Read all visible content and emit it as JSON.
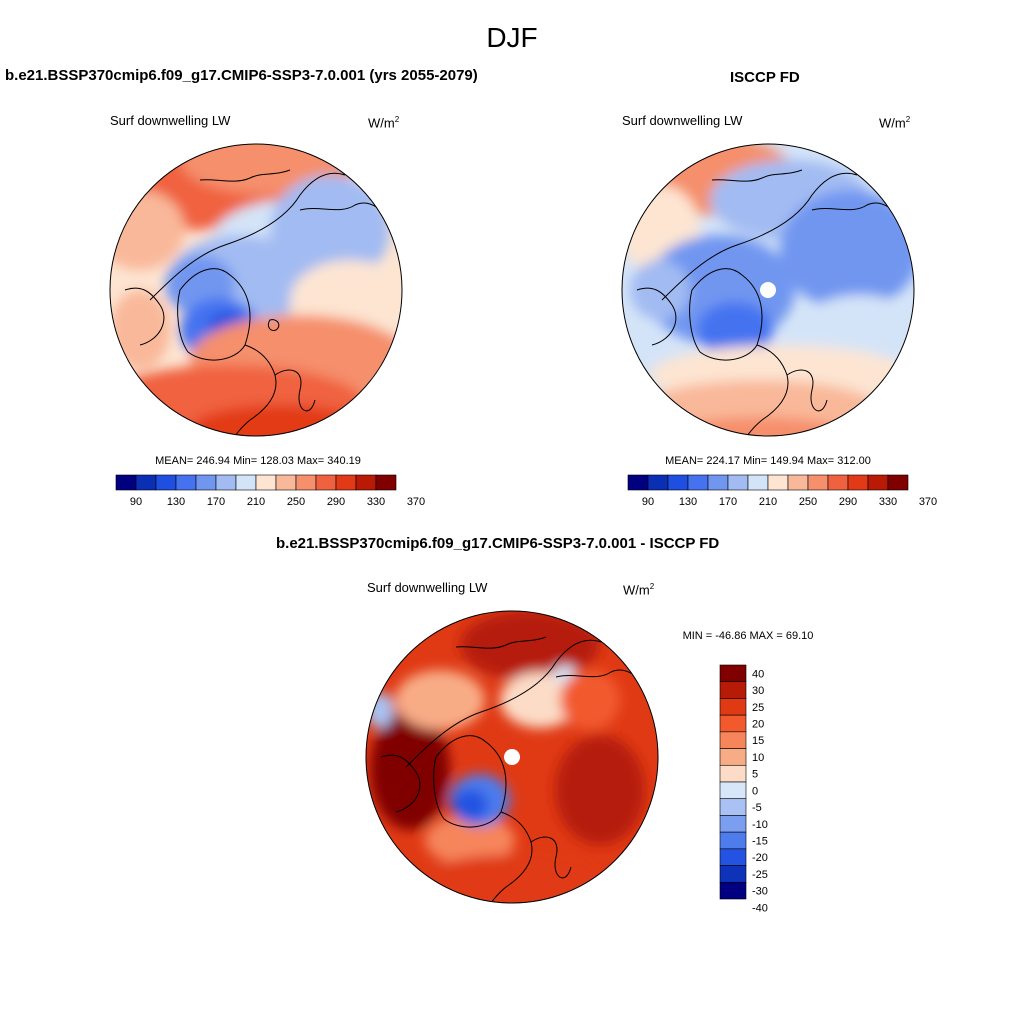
{
  "page_title": "DJF",
  "colors": {
    "scale12": [
      "#000080",
      "#0a2fb4",
      "#1f4fe0",
      "#4573f0",
      "#7196f0",
      "#a2bbf2",
      "#d4e4f8",
      "#fde5d2",
      "#f9b89a",
      "#f58f6c",
      "#f0623f",
      "#e23a16",
      "#b81a06",
      "#800000"
    ],
    "diff": [
      "#800000",
      "#b61b07",
      "#e03a15",
      "#f25a2e",
      "#f6855c",
      "#f8ac86",
      "#fcdcc7",
      "#d7e6f8",
      "#a9c2f3",
      "#7c9ef0",
      "#4e7ced",
      "#2453e2",
      "#0f33b8",
      "#000080"
    ]
  },
  "panels": {
    "model": {
      "title": "b.e21.BSSP370cmip6.f09_g17.CMIP6-SSP3-7.0.001 (yrs 2055-2079)",
      "variable": "Surf downwelling LW",
      "units_base": "W/m",
      "units_exp": "2",
      "stats": "MEAN= 246.94  Min= 128.03  Max= 340.19"
    },
    "obs": {
      "title": "ISCCP FD",
      "variable": "Surf downwelling LW",
      "units_base": "W/m",
      "units_exp": "2",
      "stats": "MEAN= 224.17  Min= 149.94  Max= 312.00"
    },
    "diff": {
      "title": "b.e21.BSSP370cmip6.f09_g17.CMIP6-SSP3-7.0.001 - ISCCP FD",
      "variable": "Surf downwelling LW",
      "units_base": "W/m",
      "units_exp": "2",
      "stats": "MIN = -46.86 MAX =  69.10"
    }
  },
  "chart_data": [
    {
      "type": "heatmap",
      "title": "b.e21.BSSP370cmip6.f09_g17.CMIP6-SSP3-7.0.001 (yrs 2055-2079)",
      "variable": "Surf downwelling LW",
      "projection": "north polar stereographic",
      "mean": 246.94,
      "min": 128.03,
      "max": 340.19,
      "colorbar_levels": [
        90,
        110,
        130,
        150,
        170,
        190,
        210,
        230,
        250,
        270,
        290,
        310,
        330,
        350,
        370
      ],
      "colorbar_labels": [
        "90",
        "130",
        "170",
        "210",
        "250",
        "290",
        "330",
        "370"
      ]
    },
    {
      "type": "heatmap",
      "title": "ISCCP FD",
      "variable": "Surf downwelling LW",
      "projection": "north polar stereographic",
      "mean": 224.17,
      "min": 149.94,
      "max": 312.0,
      "colorbar_levels": [
        90,
        110,
        130,
        150,
        170,
        190,
        210,
        230,
        250,
        270,
        290,
        310,
        330,
        350,
        370
      ],
      "colorbar_labels": [
        "90",
        "130",
        "170",
        "210",
        "250",
        "290",
        "330",
        "370"
      ]
    },
    {
      "type": "heatmap",
      "title": "b.e21.BSSP370cmip6.f09_g17.CMIP6-SSP3-7.0.001 - ISCCP FD",
      "variable": "Surf downwelling LW",
      "projection": "north polar stereographic",
      "min": -46.86,
      "max": 69.1,
      "colorbar_labels": [
        "40",
        "30",
        "25",
        "20",
        "15",
        "10",
        "5",
        "0",
        "-5",
        "-10",
        "-15",
        "-20",
        "-25",
        "-30",
        "-40"
      ]
    }
  ]
}
